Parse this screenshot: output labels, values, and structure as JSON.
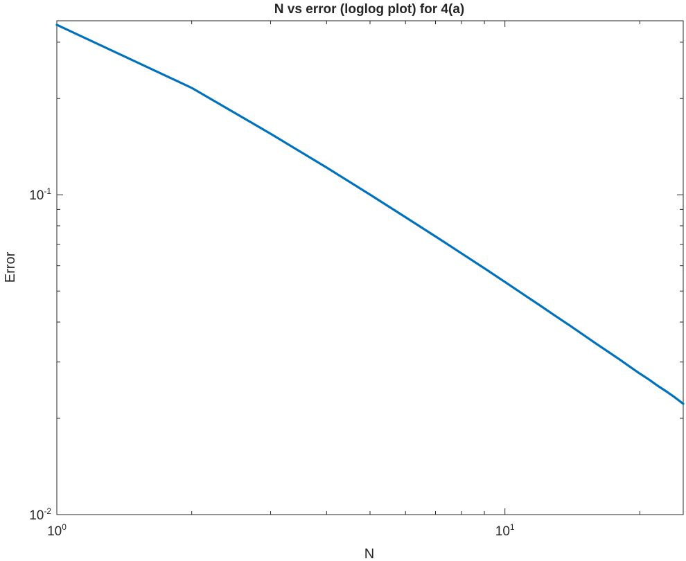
{
  "chart_data": {
    "type": "line",
    "title": "N vs error (loglog plot) for 4(a)",
    "xlabel": "N",
    "ylabel": "Error",
    "xscale": "log",
    "yscale": "log",
    "xlim": [
      1,
      25
    ],
    "ylim": [
      0.01,
      0.35
    ],
    "grid": false,
    "box": true,
    "line_color": "#0072BD",
    "x_ticks": [
      {
        "value": 1,
        "base": "10",
        "exp": "0"
      },
      {
        "value": 10,
        "base": "10",
        "exp": "1"
      }
    ],
    "y_ticks": [
      {
        "value": 0.01,
        "base": "10",
        "exp": "-2"
      },
      {
        "value": 0.1,
        "base": "10",
        "exp": "-1"
      }
    ],
    "series": [
      {
        "x": [
          1,
          2,
          3,
          4,
          5,
          6,
          7,
          8,
          9,
          10,
          11,
          12,
          13,
          14,
          15,
          16,
          17,
          18,
          19,
          20,
          21,
          22,
          23,
          24,
          25
        ],
        "y": [
          0.34,
          0.2159,
          0.1552,
          0.1217,
          0.1001,
          0.0851,
          0.0741,
          0.0656,
          0.0589,
          0.0534,
          0.0488,
          0.045,
          0.0417,
          0.0389,
          0.0364,
          0.0342,
          0.0323,
          0.0306,
          0.029,
          0.0276,
          0.0264,
          0.0252,
          0.0242,
          0.0232,
          0.0222
        ]
      }
    ]
  }
}
